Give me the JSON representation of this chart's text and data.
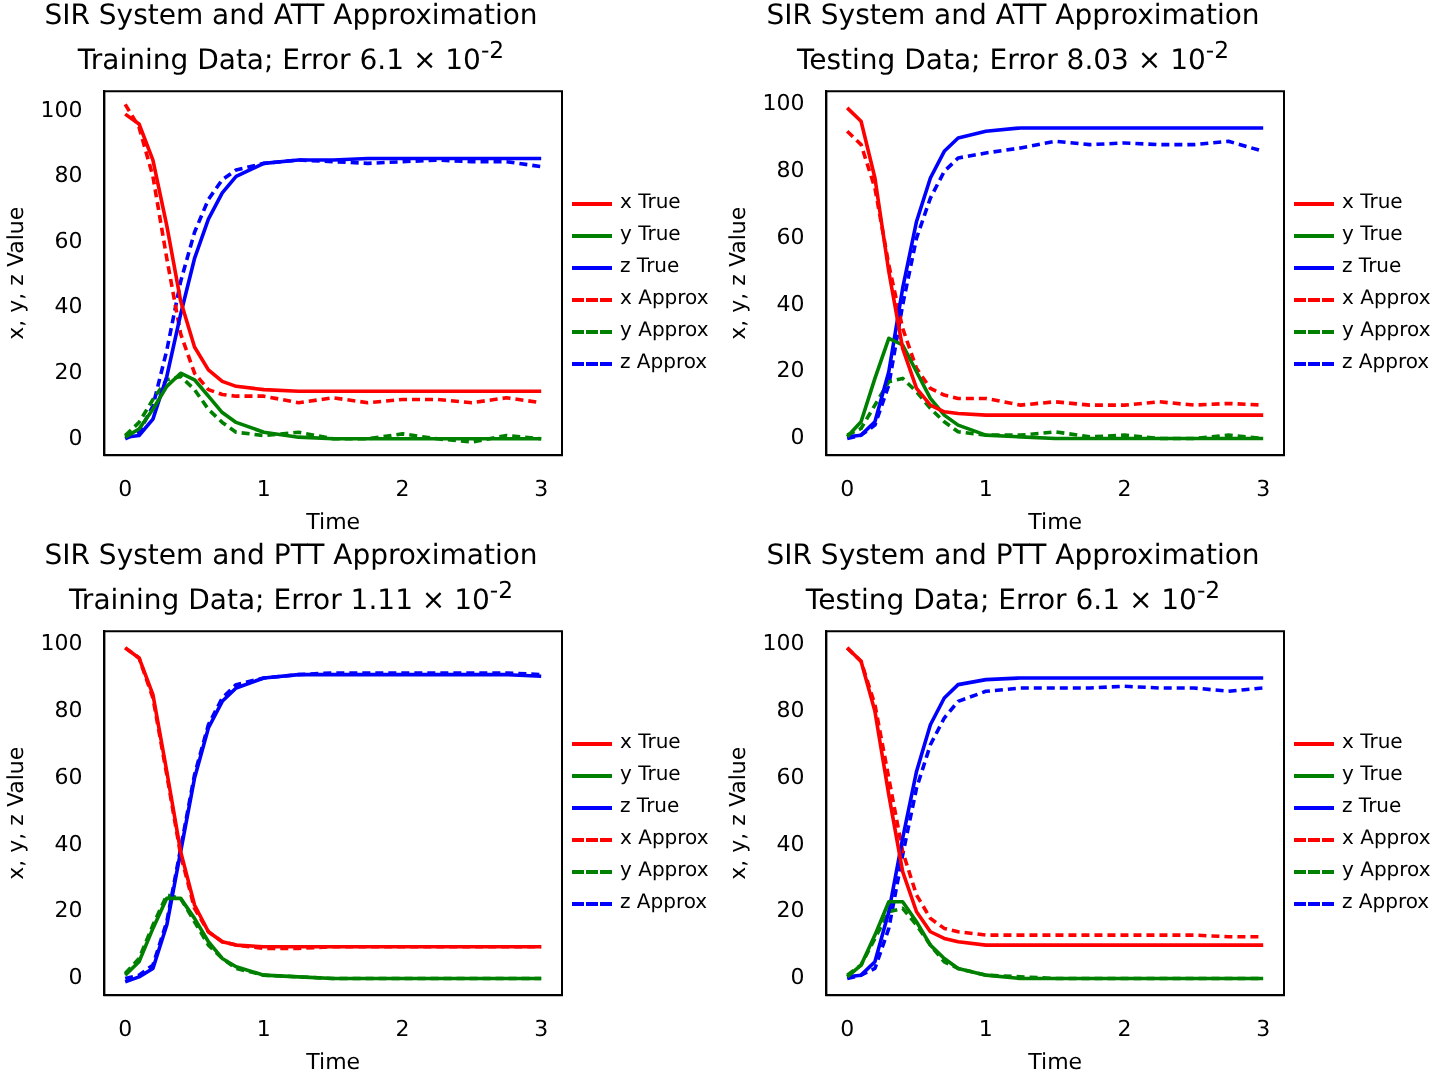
{
  "chart_data": [
    {
      "type": "line",
      "title": "SIR System and ATT Approximation",
      "subtitle": "Training Data; Error 6.1 × 10$^{-2}$",
      "xlabel": "Time",
      "ylabel": "x, y, z Value",
      "x": [
        0,
        0.1,
        0.2,
        0.3,
        0.4,
        0.5,
        0.6,
        0.7,
        0.8,
        1,
        1.25,
        1.5,
        1.75,
        2,
        2.25,
        2.5,
        2.75,
        3
      ],
      "xlim": [
        -0.15,
        3.15
      ],
      "xticks": [
        0,
        1,
        2,
        3
      ],
      "ylim": [
        -5,
        106
      ],
      "yticks": [
        0,
        20,
        40,
        60,
        80,
        100
      ],
      "legend": "right",
      "grid": false,
      "marker": "none",
      "series": [
        {
          "name": "x True",
          "color": "#ff0000",
          "line_style": "solid",
          "values": [
            99,
            96,
            85,
            65,
            42,
            28,
            21,
            17.5,
            16,
            15,
            14.5,
            14.5,
            14.5,
            14.5,
            14.5,
            14.5,
            14.5,
            14.5
          ]
        },
        {
          "name": "y True",
          "color": "#008000",
          "line_style": "solid",
          "values": [
            0.5,
            3,
            9,
            16,
            20,
            18,
            13,
            8,
            5,
            2,
            0.5,
            0,
            0,
            0,
            0,
            0,
            0,
            0
          ]
        },
        {
          "name": "z True",
          "color": "#0000ff",
          "line_style": "solid",
          "values": [
            0.5,
            1,
            6,
            19,
            38,
            55,
            67,
            75,
            80,
            84,
            85,
            85,
            85.5,
            85.5,
            85.5,
            85.5,
            85.5,
            85.5
          ]
        },
        {
          "name": "x Approx",
          "color": "#ff0000",
          "line_style": "dashed",
          "values": [
            102,
            95,
            80,
            55,
            32,
            20,
            15,
            13.5,
            13,
            13,
            11,
            12.5,
            11,
            12,
            12,
            11,
            12.5,
            11
          ]
        },
        {
          "name": "y Approx",
          "color": "#008000",
          "line_style": "dashed",
          "values": [
            1,
            5,
            12,
            18,
            19,
            15,
            9,
            5,
            2,
            1,
            2,
            0,
            0,
            1.5,
            0,
            -1,
            1,
            0
          ]
        },
        {
          "name": "z Approx",
          "color": "#0000ff",
          "line_style": "dashed",
          "values": [
            0,
            2,
            10,
            27,
            48,
            63,
            73,
            79,
            82,
            84,
            85,
            84.5,
            84,
            84.5,
            85,
            84.5,
            84.5,
            83
          ]
        }
      ]
    },
    {
      "type": "line",
      "title": "SIR System and ATT Approximation",
      "subtitle": "Testing Data; Error 8.03 × 10$^{-2}$",
      "xlabel": "Time",
      "ylabel": "x, y, z Value",
      "x": [
        0,
        0.1,
        0.2,
        0.3,
        0.4,
        0.5,
        0.6,
        0.7,
        0.8,
        1,
        1.25,
        1.5,
        1.75,
        2,
        2.25,
        2.5,
        2.75,
        3
      ],
      "xlim": [
        -0.15,
        3.15
      ],
      "xticks": [
        0,
        1,
        2,
        3
      ],
      "ylim": [
        -5,
        104
      ],
      "yticks": [
        0,
        20,
        40,
        60,
        80,
        100
      ],
      "legend": "right",
      "grid": false,
      "marker": "none",
      "series": [
        {
          "name": "x True",
          "color": "#ff0000",
          "line_style": "solid",
          "values": [
            99,
            95,
            78,
            50,
            27,
            15,
            10,
            8,
            7.5,
            7,
            7,
            7,
            7,
            7,
            7,
            7,
            7,
            7
          ]
        },
        {
          "name": "y True",
          "color": "#008000",
          "line_style": "solid",
          "values": [
            0.5,
            5,
            18,
            30,
            28,
            20,
            12,
            7,
            4,
            1,
            0.5,
            0,
            0,
            0,
            0,
            0,
            0,
            0
          ]
        },
        {
          "name": "z True",
          "color": "#0000ff",
          "line_style": "solid",
          "values": [
            0.5,
            1,
            5,
            20,
            45,
            65,
            78,
            86,
            90,
            92,
            93,
            93,
            93,
            93,
            93,
            93,
            93,
            93
          ]
        },
        {
          "name": "x Approx",
          "color": "#ff0000",
          "line_style": "dashed",
          "values": [
            92,
            88,
            75,
            52,
            33,
            21,
            15,
            13,
            12,
            12,
            10,
            11,
            10,
            10,
            11,
            10,
            10.5,
            10
          ]
        },
        {
          "name": "y Approx",
          "color": "#008000",
          "line_style": "dashed",
          "values": [
            1,
            3,
            10,
            17,
            18,
            14,
            9,
            5,
            2,
            1,
            1,
            2,
            0.5,
            1,
            0,
            0,
            1,
            0
          ]
        },
        {
          "name": "z Approx",
          "color": "#0000ff",
          "line_style": "dashed",
          "values": [
            0,
            1,
            4,
            16,
            40,
            60,
            72,
            80,
            84,
            85.5,
            87,
            89,
            88,
            88.5,
            88,
            88,
            89,
            86
          ]
        }
      ]
    },
    {
      "type": "line",
      "title": "SIR System and PTT Approximation",
      "subtitle": "Training Data; Error 1.11 × 10$^{-2}$",
      "xlabel": "Time",
      "ylabel": "x, y, z Value",
      "x": [
        0,
        0.1,
        0.2,
        0.3,
        0.4,
        0.5,
        0.6,
        0.7,
        0.8,
        1,
        1.25,
        1.5,
        1.75,
        2,
        2.25,
        2.5,
        2.75,
        3
      ],
      "xlim": [
        -0.15,
        3.15
      ],
      "xticks": [
        0,
        1,
        2,
        3
      ],
      "ylim": [
        -5,
        104
      ],
      "yticks": [
        0,
        20,
        40,
        60,
        80,
        100
      ],
      "legend": "right",
      "grid": false,
      "marker": "none",
      "series": [
        {
          "name": "x True",
          "color": "#ff0000",
          "line_style": "solid",
          "values": [
            99,
            96,
            85,
            62,
            38,
            22,
            14,
            11,
            10,
            9.5,
            9.5,
            9.5,
            9.5,
            9.5,
            9.5,
            9.5,
            9.5,
            9.5
          ]
        },
        {
          "name": "y True",
          "color": "#008000",
          "line_style": "solid",
          "values": [
            1,
            5,
            15,
            24,
            24,
            18,
            11,
            6,
            3.5,
            1,
            0.5,
            0,
            0,
            0,
            0,
            0,
            0,
            0
          ]
        },
        {
          "name": "z True",
          "color": "#0000ff",
          "line_style": "solid",
          "values": [
            -1,
            0.5,
            3,
            16,
            38,
            60,
            75,
            83,
            87,
            90,
            91,
            91,
            91,
            91,
            91,
            91,
            91,
            90.5
          ]
        },
        {
          "name": "x Approx",
          "color": "#ff0000",
          "line_style": "dashed",
          "values": [
            99,
            96,
            84,
            61,
            37,
            21,
            14,
            11,
            10,
            9,
            9,
            9.5,
            9.5,
            9.5,
            9.5,
            9.5,
            9.5,
            9.5
          ]
        },
        {
          "name": "y Approx",
          "color": "#008000",
          "line_style": "dashed",
          "values": [
            1.5,
            6,
            16,
            25,
            24,
            17,
            10,
            6,
            3,
            1,
            0.5,
            0,
            0,
            0,
            0,
            0,
            0,
            0
          ]
        },
        {
          "name": "z Approx",
          "color": "#0000ff",
          "line_style": "dashed",
          "values": [
            0,
            1,
            4,
            17,
            39,
            61,
            76,
            84,
            88,
            90,
            91,
            91.5,
            91.5,
            91.5,
            91.5,
            91.5,
            91.5,
            91
          ]
        }
      ]
    },
    {
      "type": "line",
      "title": "SIR System and PTT Approximation",
      "subtitle": "Testing Data; Error 6.1 × 10$^{-2}$",
      "xlabel": "Time",
      "ylabel": "x, y, z Value",
      "x": [
        0,
        0.1,
        0.2,
        0.3,
        0.4,
        0.5,
        0.6,
        0.7,
        0.8,
        1,
        1.25,
        1.5,
        1.75,
        2,
        2.25,
        2.5,
        2.75,
        3
      ],
      "xlim": [
        -0.15,
        3.15
      ],
      "xticks": [
        0,
        1,
        2,
        3
      ],
      "ylim": [
        -5,
        104
      ],
      "yticks": [
        0,
        20,
        40,
        60,
        80,
        100
      ],
      "legend": "right",
      "grid": false,
      "marker": "none",
      "series": [
        {
          "name": "x True",
          "color": "#ff0000",
          "line_style": "solid",
          "values": [
            99,
            95,
            80,
            55,
            32,
            20,
            14,
            12,
            11,
            10,
            10,
            10,
            10,
            10,
            10,
            10,
            10,
            10
          ]
        },
        {
          "name": "y True",
          "color": "#008000",
          "line_style": "solid",
          "values": [
            0.5,
            4,
            13,
            23,
            23,
            17,
            10,
            6,
            3,
            1,
            0,
            0,
            0,
            0,
            0,
            0,
            0,
            0
          ]
        },
        {
          "name": "z True",
          "color": "#0000ff",
          "line_style": "solid",
          "values": [
            0.5,
            1,
            5,
            20,
            42,
            62,
            76,
            84,
            88,
            89.5,
            90,
            90,
            90,
            90,
            90,
            90,
            90,
            90
          ]
        },
        {
          "name": "x Approx",
          "color": "#ff0000",
          "line_style": "dashed",
          "values": [
            99,
            95,
            82,
            60,
            38,
            25,
            18,
            15,
            14,
            13,
            13,
            13,
            13,
            13,
            13,
            13,
            12.5,
            12.5
          ]
        },
        {
          "name": "y Approx",
          "color": "#008000",
          "line_style": "dashed",
          "values": [
            1,
            4,
            12,
            20,
            21,
            16,
            10,
            5,
            3,
            1,
            0.5,
            0,
            0,
            0,
            0,
            0,
            0,
            0
          ]
        },
        {
          "name": "z Approx",
          "color": "#0000ff",
          "line_style": "dashed",
          "values": [
            0,
            1,
            3,
            15,
            37,
            57,
            70,
            78,
            83,
            86,
            87,
            87,
            87,
            87.5,
            87,
            87,
            86,
            87
          ]
        }
      ]
    }
  ]
}
